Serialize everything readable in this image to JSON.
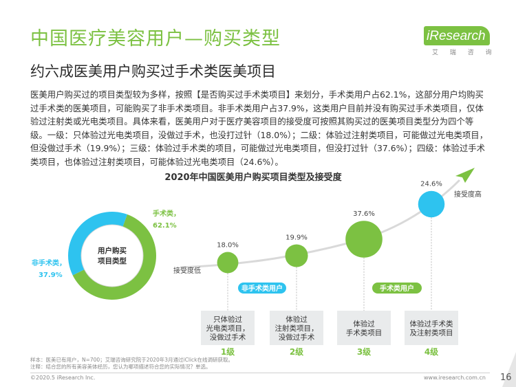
{
  "header": {
    "title": "中国医疗美容用户—购买类型",
    "subtitle": "约六成医美用户购买过手术类医美项目",
    "logo": {
      "brand": "iResearch",
      "sub": "艾 瑞 咨 询"
    }
  },
  "paragraph": "医美用户购买过的项目类型较为多样，按照【是否购买过手术类项目】来划分，手术类用户占62.1%，这部分用户均购买过手术类的医美项目，可能购买了非手术类项目。非手术类用户占37.9%，这类用户目前并没有购买过手术类项目，仅体验过注射类或光电类项目。具体来看，医美用户对于医疗美容项目的接受度可按照其购买过的医美项目类型分为四个等级。一级：只体验过光电类项目，没做过手术，也没打过针（18.0%）；二级：体验过注射类项目，可能做过光电类项目，但没做过手术（19.9%）；三级：体验过手术类的项目，可能做过光电类项目，但没打过针（37.6%）；四级：体验过手术类项目，也体验过注射类项目，可能体验过光电类项目（24.6%）。",
  "chart_data": [
    {
      "type": "pie",
      "title": "2020年中国医美用户购买项目类型及接受度",
      "center_label": "用户购买项目类型",
      "slices": [
        {
          "name": "手术类",
          "value": 62.1,
          "label": "62.1%",
          "color": "#7cc142"
        },
        {
          "name": "非手术类",
          "value": 37.9,
          "label": "37.9%",
          "color": "#2ec3ef"
        }
      ]
    },
    {
      "type": "scatter",
      "axis_low": "接受度低",
      "axis_high": "接受度高",
      "groups": [
        {
          "name": "非手术类用户",
          "color": "#2ec3ef"
        },
        {
          "name": "手术类用户",
          "color": "#7cc142"
        }
      ],
      "points": [
        {
          "level": "1级",
          "value": 18.0,
          "label": "18.0%",
          "desc": [
            "只体验过",
            "光电类项目，",
            "没做过手术"
          ],
          "color": "#7cc142"
        },
        {
          "level": "2级",
          "value": 19.9,
          "label": "19.9%",
          "desc": [
            "体验过",
            "注射类项目，",
            "没做过手术"
          ],
          "color": "#7cc142"
        },
        {
          "level": "3级",
          "value": 37.6,
          "label": "37.6%",
          "desc": [
            "体验过",
            "手术类项目"
          ],
          "color": "#7cc142"
        },
        {
          "level": "4级",
          "value": 24.6,
          "label": "24.6%",
          "desc": [
            "体验过手术类",
            "及注射类项目"
          ],
          "color": "#2ec3ef"
        }
      ]
    }
  ],
  "footer": {
    "note_lines": [
      "样本：医美已有用户，N=700；艾瑞咨询研究院于2020年3月通过iClick在线调研获取。",
      "注释：结合您的所有美容美体经历，您认为哪项描述符合您的实际情况？单选。"
    ],
    "copyright": "©2020.5 iResearch Inc.",
    "website": "www.iresearch.com.cn",
    "page": "16"
  }
}
